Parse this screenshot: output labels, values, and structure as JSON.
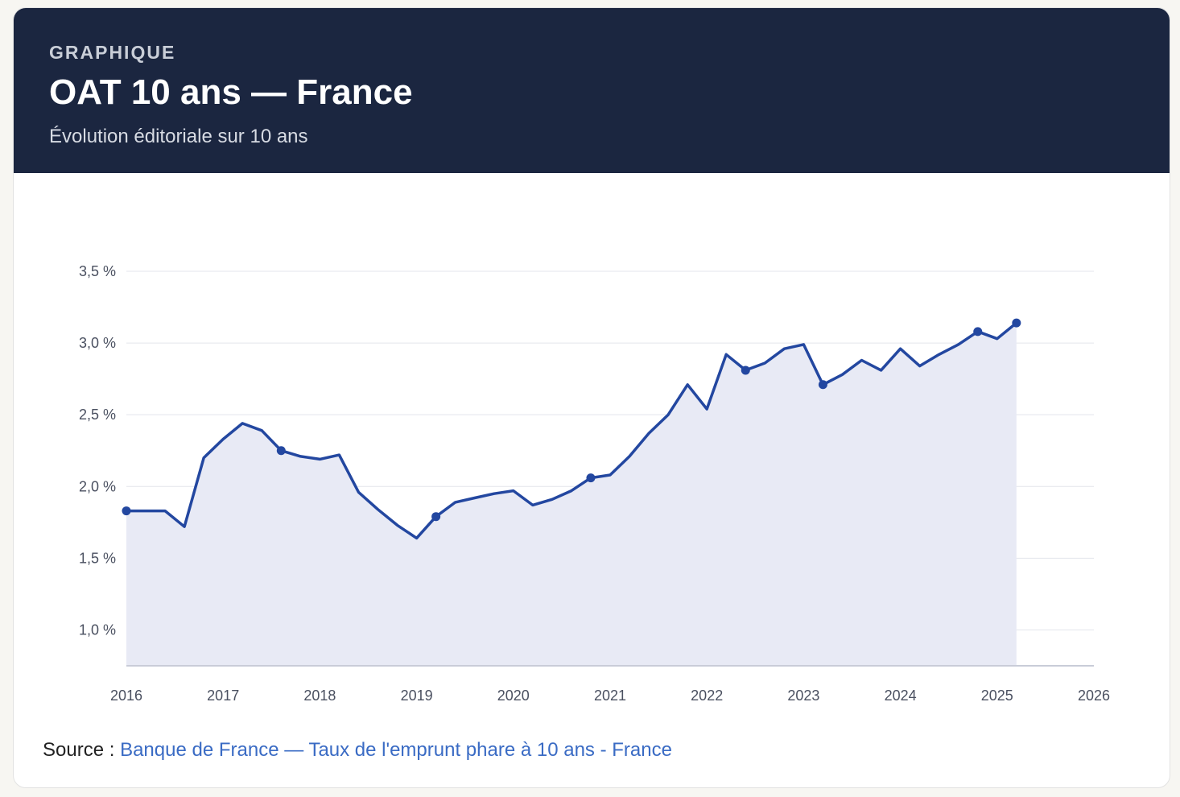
{
  "header": {
    "kicker": "GRAPHIQUE",
    "title": "OAT 10 ans — France",
    "subtitle": "Évolution éditoriale sur 10 ans"
  },
  "source": {
    "label": "Source :",
    "link_text": "Banque de France — Taux de l'emprunt phare à 10 ans - France"
  },
  "colors": {
    "header_bg": "#1b2640",
    "line": "#2347a0",
    "area": "#e8eaf5",
    "grid": "#e3e5ec",
    "link": "#3a6bc4"
  },
  "chart_data": {
    "type": "area",
    "title": "",
    "xlabel": "",
    "ylabel": "",
    "ylim": [
      0.75,
      3.5
    ],
    "xlim": [
      2016.0,
      2026.0
    ],
    "y_ticks": [
      {
        "value": 1.0,
        "label": "1,0 %"
      },
      {
        "value": 1.5,
        "label": "1,5 %"
      },
      {
        "value": 2.0,
        "label": "2,0 %"
      },
      {
        "value": 2.5,
        "label": "2,5 %"
      },
      {
        "value": 3.0,
        "label": "3,0 %"
      },
      {
        "value": 3.5,
        "label": "3,5 %"
      }
    ],
    "x_ticks": [
      {
        "value": 2016.0,
        "label": "2016"
      },
      {
        "value": 2017.0,
        "label": "2017"
      },
      {
        "value": 2018.0,
        "label": "2018"
      },
      {
        "value": 2019.0,
        "label": "2019"
      },
      {
        "value": 2020.0,
        "label": "2020"
      },
      {
        "value": 2021.0,
        "label": "2021"
      },
      {
        "value": 2022.0,
        "label": "2022"
      },
      {
        "value": 2023.0,
        "label": "2023"
      },
      {
        "value": 2024.0,
        "label": "2024"
      },
      {
        "value": 2025.0,
        "label": "2025"
      },
      {
        "value": 2026.0,
        "label": "2026"
      }
    ],
    "grid": true,
    "series": [
      {
        "points": [
          [
            2016.0,
            1.83
          ],
          [
            2016.2,
            1.83
          ],
          [
            2016.4,
            1.83
          ],
          [
            2016.6,
            1.72
          ],
          [
            2016.8,
            2.2
          ],
          [
            2017.0,
            2.33
          ],
          [
            2017.2,
            2.44
          ],
          [
            2017.4,
            2.39
          ],
          [
            2017.6,
            2.25
          ],
          [
            2017.8,
            2.21
          ],
          [
            2018.0,
            2.19
          ],
          [
            2018.2,
            2.22
          ],
          [
            2018.4,
            1.96
          ],
          [
            2018.6,
            1.84
          ],
          [
            2018.8,
            1.73
          ],
          [
            2019.0,
            1.64
          ],
          [
            2019.2,
            1.79
          ],
          [
            2019.4,
            1.89
          ],
          [
            2019.6,
            1.92
          ],
          [
            2019.8,
            1.95
          ],
          [
            2020.0,
            1.97
          ],
          [
            2020.2,
            1.87
          ],
          [
            2020.4,
            1.91
          ],
          [
            2020.6,
            1.97
          ],
          [
            2020.8,
            2.06
          ],
          [
            2021.0,
            2.08
          ],
          [
            2021.2,
            2.21
          ],
          [
            2021.4,
            2.37
          ],
          [
            2021.6,
            2.5
          ],
          [
            2021.8,
            2.71
          ],
          [
            2022.0,
            2.54
          ],
          [
            2022.2,
            2.92
          ],
          [
            2022.4,
            2.81
          ],
          [
            2022.6,
            2.86
          ],
          [
            2022.8,
            2.96
          ],
          [
            2023.0,
            2.99
          ],
          [
            2023.2,
            2.71
          ],
          [
            2023.4,
            2.78
          ],
          [
            2023.6,
            2.88
          ],
          [
            2023.8,
            2.81
          ],
          [
            2024.0,
            2.96
          ],
          [
            2024.2,
            2.84
          ],
          [
            2024.4,
            2.92
          ],
          [
            2024.6,
            2.99
          ],
          [
            2024.8,
            3.08
          ],
          [
            2025.0,
            3.03
          ],
          [
            2025.2,
            3.14
          ]
        ],
        "markers": [
          [
            2016.0,
            1.83
          ],
          [
            2017.6,
            2.25
          ],
          [
            2019.2,
            1.79
          ],
          [
            2020.8,
            2.06
          ],
          [
            2022.4,
            2.81
          ],
          [
            2023.2,
            2.71
          ],
          [
            2024.8,
            3.08
          ],
          [
            2025.2,
            3.14
          ]
        ]
      }
    ]
  }
}
